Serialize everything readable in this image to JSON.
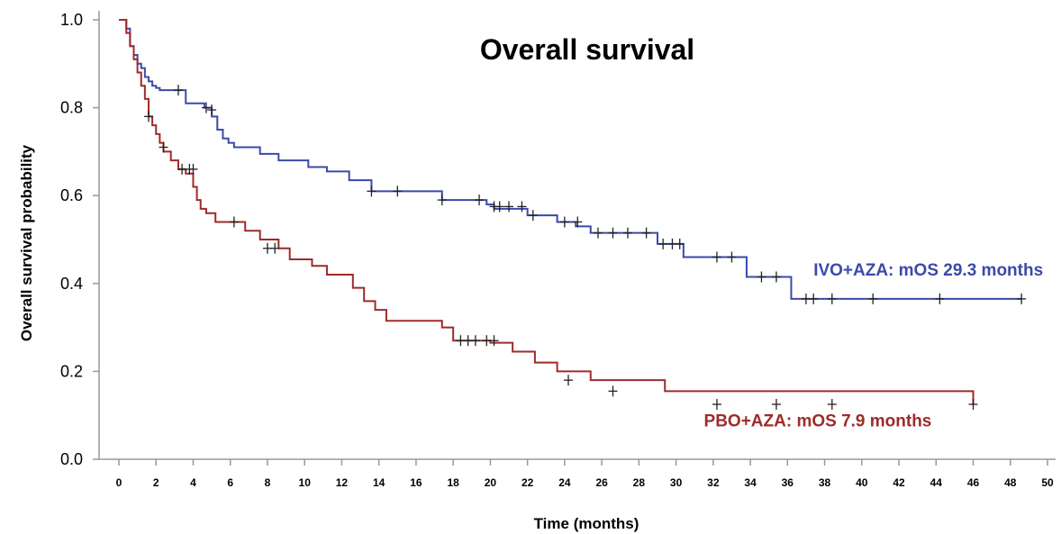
{
  "chart_data": {
    "type": "line",
    "title": "Overall survival",
    "xlabel": "Time (months)",
    "ylabel": "Overall survival probability",
    "xlim": [
      0,
      50
    ],
    "ylim": [
      0,
      1.0
    ],
    "x_ticks": [
      "0",
      "2",
      "4",
      "6",
      "8",
      "10",
      "12",
      "14",
      "16",
      "18",
      "20",
      "22",
      "24",
      "26",
      "28",
      "30",
      "32",
      "34",
      "36",
      "38",
      "40",
      "42",
      "44",
      "46",
      "48",
      "50"
    ],
    "y_ticks": [
      "0.0",
      "0.2",
      "0.4",
      "0.6",
      "0.8",
      "1.0"
    ],
    "grid": false,
    "series": [
      {
        "name": "IVO+AZA: mOS 29.3 months",
        "color": "#3b4aa8",
        "x": [
          0,
          0.4,
          0.6,
          0.8,
          1.0,
          1.2,
          1.4,
          1.6,
          1.8,
          2.0,
          2.2,
          3.6,
          3.9,
          4.6,
          5.0,
          5.3,
          5.6,
          5.9,
          6.2,
          7.6,
          8.6,
          10.2,
          11.2,
          12.4,
          13.6,
          17.4,
          19.8,
          20.2,
          22.0,
          23.6,
          24.6,
          25.4,
          29.0,
          30.4,
          32.0,
          33.8,
          36.2,
          48.6
        ],
        "y": [
          1.0,
          0.98,
          0.94,
          0.92,
          0.9,
          0.89,
          0.87,
          0.86,
          0.85,
          0.845,
          0.84,
          0.81,
          0.81,
          0.8,
          0.78,
          0.75,
          0.73,
          0.72,
          0.71,
          0.695,
          0.68,
          0.665,
          0.655,
          0.635,
          0.61,
          0.59,
          0.58,
          0.57,
          0.555,
          0.54,
          0.53,
          0.515,
          0.49,
          0.46,
          0.46,
          0.415,
          0.365,
          0.365
        ],
        "censor_x": [
          3.2,
          4.7,
          5.0,
          13.6,
          15.0,
          17.4,
          19.4,
          20.2,
          20.5,
          21.0,
          21.7,
          22.3,
          24.0,
          24.7,
          25.8,
          26.6,
          27.4,
          28.4,
          29.3,
          29.8,
          30.2,
          32.2,
          33.0,
          34.6,
          35.4,
          37.0,
          37.4,
          38.4,
          40.6,
          44.2,
          48.6
        ],
        "censor_y": [
          0.84,
          0.8,
          0.795,
          0.61,
          0.61,
          0.59,
          0.59,
          0.575,
          0.575,
          0.575,
          0.575,
          0.555,
          0.54,
          0.54,
          0.515,
          0.515,
          0.515,
          0.515,
          0.49,
          0.49,
          0.49,
          0.46,
          0.46,
          0.415,
          0.415,
          0.365,
          0.365,
          0.365,
          0.365,
          0.365,
          0.365
        ]
      },
      {
        "name": "PBO+AZA: mOS 7.9 months",
        "color": "#9e2b2b",
        "x": [
          0,
          0.4,
          0.6,
          0.8,
          1.0,
          1.2,
          1.4,
          1.6,
          1.8,
          2.0,
          2.2,
          2.4,
          2.8,
          3.2,
          3.6,
          4.0,
          4.2,
          4.4,
          4.7,
          5.2,
          6.8,
          7.6,
          8.6,
          9.2,
          10.4,
          11.2,
          12.6,
          13.2,
          13.8,
          14.4,
          17.4,
          18.0,
          20.0,
          21.2,
          22.4,
          23.6,
          25.4,
          29.4,
          46.0
        ],
        "y": [
          1.0,
          0.97,
          0.94,
          0.91,
          0.88,
          0.85,
          0.82,
          0.78,
          0.76,
          0.74,
          0.72,
          0.7,
          0.68,
          0.66,
          0.65,
          0.62,
          0.59,
          0.57,
          0.56,
          0.54,
          0.52,
          0.5,
          0.48,
          0.455,
          0.44,
          0.42,
          0.39,
          0.36,
          0.34,
          0.315,
          0.3,
          0.27,
          0.265,
          0.245,
          0.22,
          0.2,
          0.18,
          0.155,
          0.125
        ],
        "censor_x": [
          1.6,
          2.4,
          3.4,
          3.8,
          4.0,
          6.2,
          8.0,
          8.4,
          18.4,
          18.8,
          19.2,
          19.8,
          20.2,
          24.2,
          26.6,
          32.2,
          35.4,
          38.4,
          46.0
        ],
        "censor_y": [
          0.78,
          0.71,
          0.66,
          0.66,
          0.66,
          0.54,
          0.48,
          0.48,
          0.27,
          0.27,
          0.27,
          0.27,
          0.27,
          0.18,
          0.155,
          0.125,
          0.125,
          0.125,
          0.125
        ]
      }
    ],
    "annotations": [
      {
        "text": "IVO+AZA: mOS 29.3 months",
        "x": 37.4,
        "y": 0.418,
        "color": "#3b4aa8"
      },
      {
        "text": "PBO+AZA: mOS 7.9 months",
        "x": 31.5,
        "y": 0.075,
        "color": "#9e2b2b"
      }
    ]
  }
}
